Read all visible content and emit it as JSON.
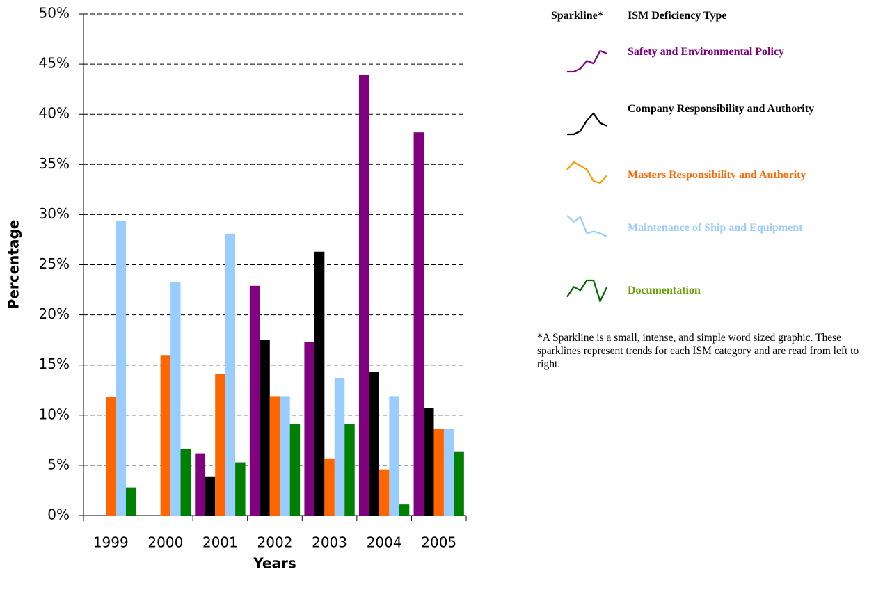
{
  "chart_data": {
    "type": "bar",
    "ylabel": "Percentage",
    "xlabel": "Years",
    "categories": [
      "1999",
      "2000",
      "2001",
      "2002",
      "2003",
      "2004",
      "2005"
    ],
    "series": [
      {
        "name": "Safety and Environmental Policy",
        "color": "#800080",
        "label_color": "#800080",
        "sparkline_color": "#800080",
        "values": [
          0,
          0,
          6.2,
          22.9,
          17.3,
          43.9,
          38.2
        ]
      },
      {
        "name": "Company Responsibility and Authority",
        "color": "#000000",
        "label_color": "#000000",
        "sparkline_color": "#000000",
        "values": [
          0,
          0,
          3.9,
          17.5,
          26.3,
          14.3,
          10.7
        ]
      },
      {
        "name": "Masters Responsibility and Authority",
        "color": "#ff6600",
        "label_color": "#ff6600",
        "sparkline_color": "#ff9900",
        "values": [
          11.8,
          16.0,
          14.1,
          11.9,
          5.7,
          4.6,
          8.6
        ]
      },
      {
        "name": "Maintenance of Ship and Equipment",
        "color": "#99ccff",
        "label_color": "#99ccff",
        "sparkline_color": "#99ccff",
        "values": [
          29.4,
          23.3,
          28.1,
          11.9,
          13.7,
          11.9,
          8.6
        ]
      },
      {
        "name": "Documentation",
        "color": "#008000",
        "label_color": "#66a000",
        "sparkline_color": "#006600",
        "values": [
          2.8,
          6.6,
          5.3,
          9.1,
          9.1,
          1.1,
          6.4
        ]
      }
    ],
    "ylim": [
      0,
      50
    ],
    "yticks": [
      {
        "value": 0,
        "label": "0%"
      },
      {
        "value": 5,
        "label": "5%"
      },
      {
        "value": 10,
        "label": "10%"
      },
      {
        "value": 15,
        "label": "15%"
      },
      {
        "value": 20,
        "label": "20%"
      },
      {
        "value": 25,
        "label": "25%"
      },
      {
        "value": 30,
        "label": "30%"
      },
      {
        "value": 35,
        "label": "35%"
      },
      {
        "value": 40,
        "label": "40%"
      },
      {
        "value": 45,
        "label": "45%"
      },
      {
        "value": 50,
        "label": "50%"
      }
    ],
    "grid": true,
    "legend_header_sparkline": "Sparkline*",
    "legend_header_type": "ISM Deficiency Type",
    "footnote": "*A Sparkline is a small, intense, and simple word sized graphic.  These sparklines represent trends for each ISM category and are read from left to right."
  }
}
